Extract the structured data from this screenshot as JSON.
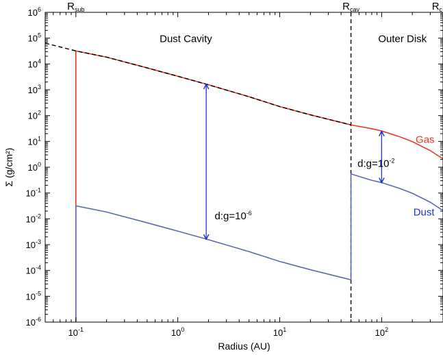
{
  "chart_data": {
    "type": "line",
    "xlabel": "Radius (AU)",
    "ylabel": "Σ (g/cm²)",
    "xscale": "log",
    "yscale": "log",
    "xlim": [
      0.05,
      400
    ],
    "ylim": [
      1e-06,
      1000000.0
    ],
    "grid": false,
    "x_ticks": [
      {
        "value": 0.1,
        "base": "10",
        "exp": "-1"
      },
      {
        "value": 1,
        "base": "10",
        "exp": "0"
      },
      {
        "value": 10,
        "base": "10",
        "exp": "1"
      },
      {
        "value": 100,
        "base": "10",
        "exp": "2"
      }
    ],
    "y_ticks": [
      {
        "value": 1e-06,
        "base": "10",
        "exp": "-6"
      },
      {
        "value": 1e-05,
        "base": "10",
        "exp": "-5"
      },
      {
        "value": 0.0001,
        "base": "10",
        "exp": "-4"
      },
      {
        "value": 0.001,
        "base": "10",
        "exp": "-3"
      },
      {
        "value": 0.01,
        "base": "10",
        "exp": "-2"
      },
      {
        "value": 0.1,
        "base": "10",
        "exp": "-1"
      },
      {
        "value": 1,
        "base": "10",
        "exp": "0"
      },
      {
        "value": 10,
        "base": "10",
        "exp": "1"
      },
      {
        "value": 100,
        "base": "10",
        "exp": "2"
      },
      {
        "value": 1000,
        "base": "10",
        "exp": "3"
      },
      {
        "value": 10000,
        "base": "10",
        "exp": "4"
      },
      {
        "value": 100000,
        "base": "10",
        "exp": "5"
      },
      {
        "value": 1000000,
        "base": "10",
        "exp": "6"
      }
    ],
    "top_labels": [
      {
        "x": 0.1,
        "main": "R",
        "sub": "sub"
      },
      {
        "x": 50,
        "main": "R",
        "sub": "cav"
      },
      {
        "x": 350,
        "main": "R",
        "sub": "c"
      }
    ],
    "region_labels": [
      {
        "x": 1.2,
        "y": 100000,
        "text": "Dust Cavity"
      },
      {
        "x": 160,
        "y": 100000,
        "text": "Outer Disk"
      }
    ],
    "cavity_line_x": 50,
    "series": [
      {
        "name": "Gas",
        "color": "#e8382a",
        "points": [
          [
            0.1,
            1e-06
          ],
          [
            0.1,
            32000
          ],
          [
            0.2,
            18400
          ],
          [
            0.5,
            7050
          ],
          [
            1,
            3340
          ],
          [
            2,
            1560
          ],
          [
            5,
            538
          ],
          [
            10,
            224
          ],
          [
            20,
            107
          ],
          [
            50,
            43.6
          ],
          [
            80,
            31.0
          ],
          [
            100,
            25.4
          ],
          [
            150,
            15.2
          ],
          [
            200,
            9.8
          ],
          [
            300,
            4.4
          ],
          [
            400,
            2.1
          ]
        ]
      },
      {
        "name": "Dust",
        "color": "#5b6aab",
        "points": [
          [
            0.1,
            1e-06
          ],
          [
            0.1,
            0.032
          ],
          [
            0.2,
            0.0184
          ],
          [
            0.5,
            0.00705
          ],
          [
            1,
            0.00334
          ],
          [
            2,
            0.00156
          ],
          [
            5,
            0.000538
          ],
          [
            10,
            0.000224
          ],
          [
            20,
            0.000107
          ],
          [
            50,
            4.36e-05
          ],
          [
            50,
            0.55
          ],
          [
            80,
            0.31
          ],
          [
            100,
            0.254
          ],
          [
            150,
            0.152
          ],
          [
            200,
            0.098
          ],
          [
            300,
            0.044
          ],
          [
            400,
            0.021
          ]
        ]
      },
      {
        "name": "",
        "color": "#000000",
        "dashed": true,
        "points": [
          [
            0.05,
            64000
          ],
          [
            0.1,
            32000
          ],
          [
            0.2,
            18400
          ],
          [
            0.5,
            7050
          ],
          [
            1,
            3340
          ],
          [
            2,
            1560
          ],
          [
            5,
            538
          ],
          [
            10,
            224
          ],
          [
            20,
            107
          ],
          [
            50,
            43.6
          ]
        ]
      }
    ],
    "series_labels": [
      {
        "text": "Gas",
        "x": 330,
        "y": 12,
        "color": "#e8382a"
      },
      {
        "text": "Dust",
        "x": 330,
        "y": 0.018,
        "color": "#1a35d6"
      }
    ],
    "arrows": [
      {
        "x": 1.9,
        "y1": 0.0016,
        "y2": 1650,
        "label_main": "d:g=10",
        "label_exp": "-6",
        "label_x": 2.3,
        "label_y": 0.013
      },
      {
        "x": 100,
        "y1": 0.25,
        "y2": 25,
        "label_main": "d:g=10",
        "label_exp": "-2",
        "label_x": 58,
        "label_y": 1.4
      }
    ],
    "arrow_color": "#1a35d6"
  }
}
